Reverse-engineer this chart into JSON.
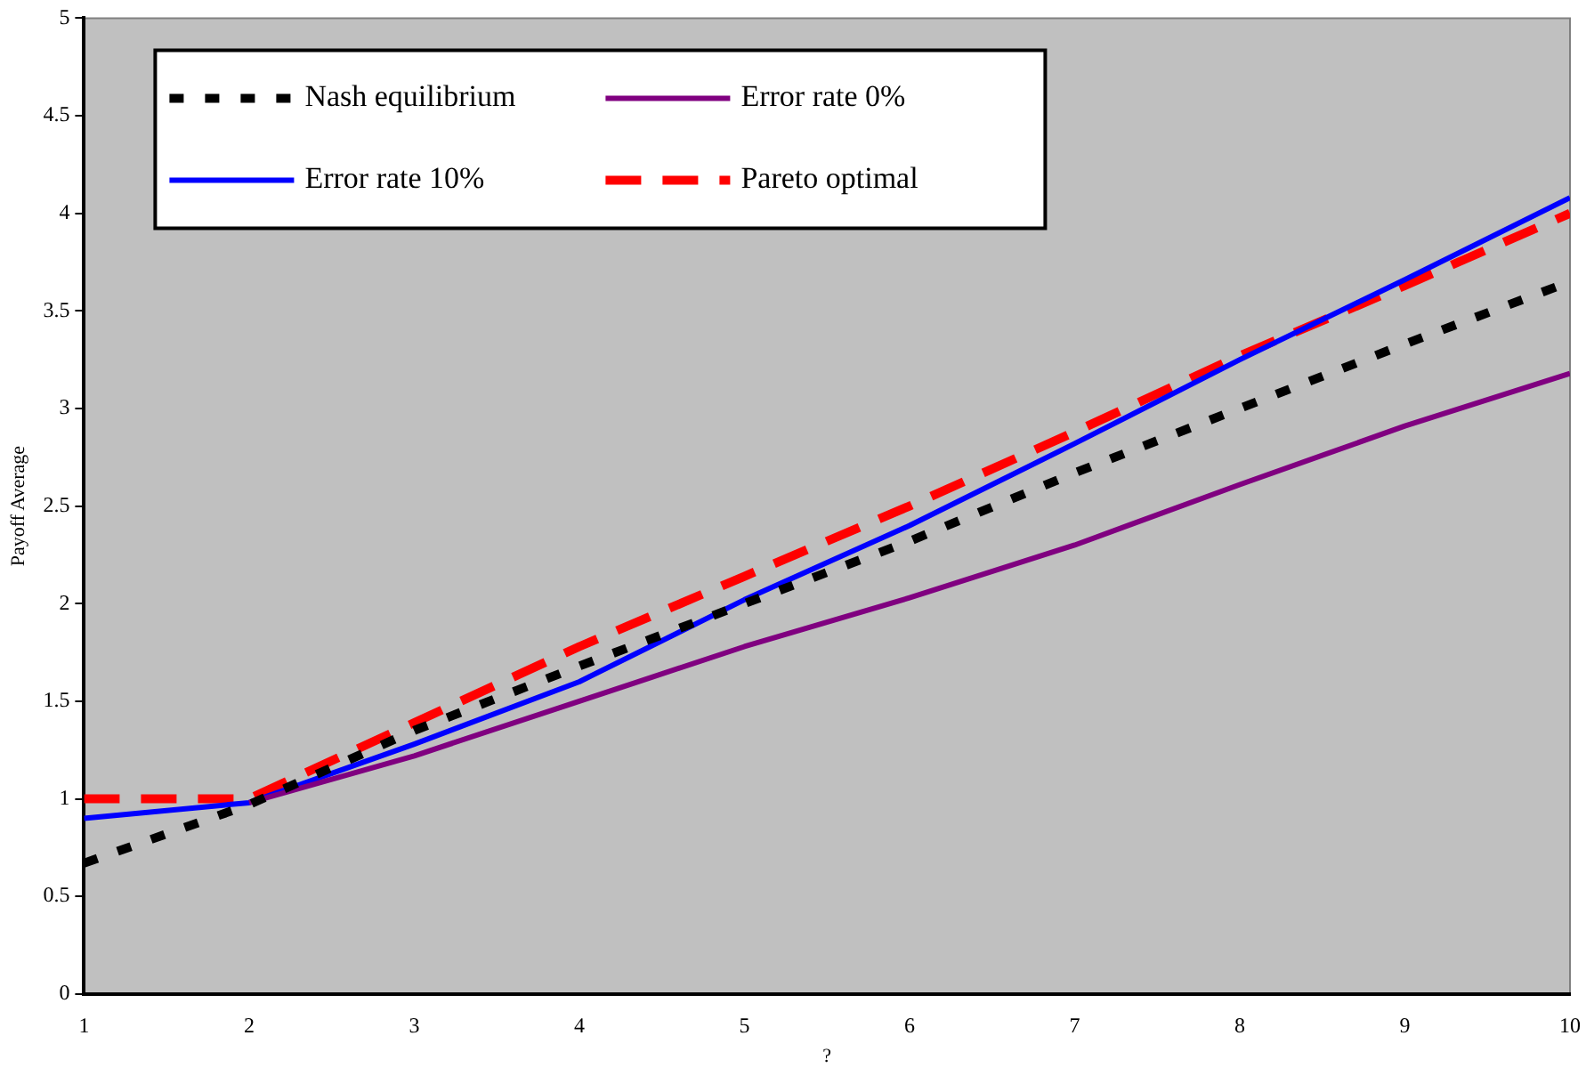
{
  "chart_data": {
    "type": "line",
    "xlabel": "?",
    "ylabel": "Payoff Average",
    "x": [
      1,
      2,
      3,
      4,
      5,
      6,
      7,
      8,
      9,
      10
    ],
    "xlim": [
      1,
      10
    ],
    "xticks": [
      1,
      2,
      3,
      4,
      5,
      6,
      7,
      8,
      9,
      10
    ],
    "ylim": [
      0,
      5
    ],
    "yticks": [
      0,
      0.5,
      1,
      1.5,
      2,
      2.5,
      3,
      3.5,
      4,
      4.5,
      5
    ],
    "grid": false,
    "legend": "top left",
    "marker": "none",
    "series": [
      {
        "name": "Nash equilibrium",
        "color": "#000000",
        "line_style": "dotted",
        "values": [
          0.67,
          0.97,
          1.35,
          1.68,
          2.0,
          2.32,
          2.67,
          3.0,
          3.33,
          3.65
        ]
      },
      {
        "name": "Error rate 0%",
        "color": "#800080",
        "line_style": "solid",
        "values": [
          null,
          0.98,
          1.22,
          1.5,
          1.78,
          2.03,
          2.3,
          2.61,
          2.91,
          3.18
        ]
      },
      {
        "name": "Error rate 10%",
        "color": "#0000ff",
        "line_style": "solid",
        "values": [
          0.9,
          0.98,
          1.28,
          1.6,
          2.02,
          2.4,
          2.82,
          3.25,
          3.66,
          4.08
        ]
      },
      {
        "name": "Pareto optimal",
        "color": "#ff0000",
        "line_style": "dashed",
        "values": [
          1.0,
          1.0,
          1.39,
          1.78,
          2.14,
          2.5,
          2.88,
          3.27,
          3.63,
          4.0
        ]
      }
    ]
  }
}
